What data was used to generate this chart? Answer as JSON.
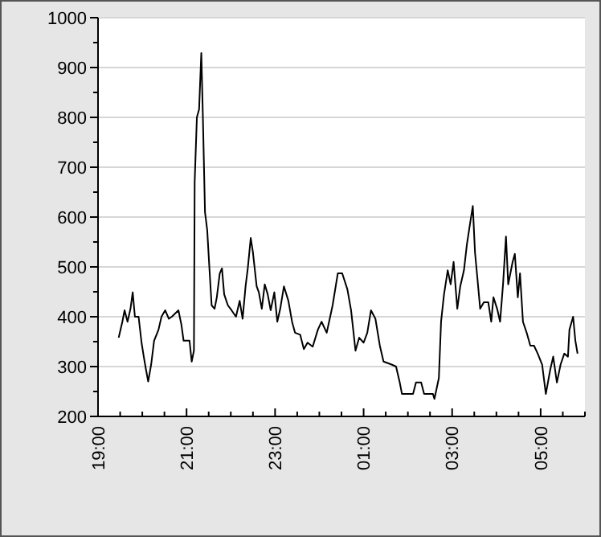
{
  "chart_data": {
    "type": "line",
    "grid": "y",
    "marker": "none",
    "line_style": "solid",
    "xlim": [
      "2000-01-01T19:00",
      "2000-01-02T06:00"
    ],
    "ylim": [
      200,
      1000
    ],
    "xticks": [
      {
        "value": "2000-01-01T19:00",
        "label": "19:00"
      },
      {
        "value": "2000-01-01T19:30",
        "label": null
      },
      {
        "value": "2000-01-01T20:00",
        "label": null
      },
      {
        "value": "2000-01-01T20:30",
        "label": null
      },
      {
        "value": "2000-01-01T21:00",
        "label": "21:00"
      },
      {
        "value": "2000-01-01T21:30",
        "label": null
      },
      {
        "value": "2000-01-01T22:00",
        "label": null
      },
      {
        "value": "2000-01-01T22:30",
        "label": null
      },
      {
        "value": "2000-01-01T23:00",
        "label": "23:00"
      },
      {
        "value": "2000-01-01T23:30",
        "label": null
      },
      {
        "value": "2000-01-02T00:00",
        "label": null
      },
      {
        "value": "2000-01-02T00:30",
        "label": null
      },
      {
        "value": "2000-01-02T01:00",
        "label": "01:00"
      },
      {
        "value": "2000-01-02T01:30",
        "label": null
      },
      {
        "value": "2000-01-02T02:00",
        "label": null
      },
      {
        "value": "2000-01-02T02:30",
        "label": null
      },
      {
        "value": "2000-01-02T03:00",
        "label": "03:00"
      },
      {
        "value": "2000-01-02T03:30",
        "label": null
      },
      {
        "value": "2000-01-02T04:00",
        "label": null
      },
      {
        "value": "2000-01-02T04:30",
        "label": null
      },
      {
        "value": "2000-01-02T05:00",
        "label": "05:00"
      },
      {
        "value": "2000-01-02T05:30",
        "label": null
      },
      {
        "value": "2000-01-02T06:00",
        "label": null
      }
    ],
    "yticks": [
      200,
      {
        "value": 250,
        "label": null
      },
      300,
      {
        "value": 350,
        "label": null
      },
      400,
      {
        "value": 450,
        "label": null
      },
      500,
      {
        "value": 550,
        "label": null
      },
      600,
      {
        "value": 650,
        "label": null
      },
      700,
      {
        "value": 750,
        "label": null
      },
      800,
      {
        "value": 850,
        "label": null
      },
      900,
      {
        "value": 950,
        "label": null
      },
      1000
    ],
    "series": [
      {
        "color": "#000000",
        "x": [
          "2000-01-01T19:28",
          "2000-01-01T19:33",
          "2000-01-01T19:36",
          "2000-01-01T19:40",
          "2000-01-01T19:44",
          "2000-01-01T19:47",
          "2000-01-01T19:50",
          "2000-01-01T19:55",
          "2000-01-01T19:59",
          "2000-01-01T20:02",
          "2000-01-01T20:05",
          "2000-01-01T20:08",
          "2000-01-01T20:12",
          "2000-01-01T20:16",
          "2000-01-01T20:22",
          "2000-01-01T20:26",
          "2000-01-01T20:31",
          "2000-01-01T20:36",
          "2000-01-01T20:40",
          "2000-01-01T20:49",
          "2000-01-01T20:53",
          "2000-01-01T20:56",
          "2000-01-01T21:04",
          "2000-01-01T21:07",
          "2000-01-01T21:10",
          "2000-01-01T21:11",
          "2000-01-01T21:14",
          "2000-01-01T21:17",
          "2000-01-01T21:20",
          "2000-01-01T21:22",
          "2000-01-01T21:25",
          "2000-01-01T21:28",
          "2000-01-01T21:31",
          "2000-01-01T21:34",
          "2000-01-01T21:38",
          "2000-01-01T21:41",
          "2000-01-01T21:45",
          "2000-01-01T21:48",
          "2000-01-01T21:51",
          "2000-01-01T21:56",
          "2000-01-01T22:01",
          "2000-01-01T22:07",
          "2000-01-01T22:12",
          "2000-01-01T22:16",
          "2000-01-01T22:20",
          "2000-01-01T22:23",
          "2000-01-01T22:27",
          "2000-01-01T22:30",
          "2000-01-01T22:35",
          "2000-01-01T22:38",
          "2000-01-01T22:42",
          "2000-01-01T22:46",
          "2000-01-01T22:50",
          "2000-01-01T22:54",
          "2000-01-01T22:59",
          "2000-01-01T23:03",
          "2000-01-01T23:07",
          "2000-01-01T23:12",
          "2000-01-01T23:18",
          "2000-01-01T23:23",
          "2000-01-01T23:27",
          "2000-01-01T23:34",
          "2000-01-01T23:39",
          "2000-01-01T23:44",
          "2000-01-01T23:51",
          "2000-01-01T23:58",
          "2000-01-02T00:03",
          "2000-01-02T00:10",
          "2000-01-02T00:18",
          "2000-01-02T00:25",
          "2000-01-02T00:31",
          "2000-01-02T00:38",
          "2000-01-02T00:43",
          "2000-01-02T00:49",
          "2000-01-02T00:54",
          "2000-01-02T01:00",
          "2000-01-02T01:05",
          "2000-01-02T01:10",
          "2000-01-02T01:16",
          "2000-01-02T01:22",
          "2000-01-02T01:27",
          "2000-01-02T01:38",
          "2000-01-02T01:44",
          "2000-01-02T01:49",
          "2000-01-02T01:52",
          "2000-01-02T02:07",
          "2000-01-02T02:11",
          "2000-01-02T02:18",
          "2000-01-02T02:22",
          "2000-01-02T02:34",
          "2000-01-02T02:36",
          "2000-01-02T02:42",
          "2000-01-02T02:45",
          "2000-01-02T02:49",
          "2000-01-02T02:54",
          "2000-01-02T02:58",
          "2000-01-02T03:02",
          "2000-01-02T03:07",
          "2000-01-02T03:11",
          "2000-01-02T03:16",
          "2000-01-02T03:20",
          "2000-01-02T03:24",
          "2000-01-02T03:28",
          "2000-01-02T03:31",
          "2000-01-02T03:34",
          "2000-01-02T03:38",
          "2000-01-02T03:43",
          "2000-01-02T03:49",
          "2000-01-02T03:53",
          "2000-01-02T03:56",
          "2000-01-02T04:01",
          "2000-01-02T04:05",
          "2000-01-02T04:09",
          "2000-01-02T04:13",
          "2000-01-02T04:16",
          "2000-01-02T04:22",
          "2000-01-02T04:25",
          "2000-01-02T04:29",
          "2000-01-02T04:32",
          "2000-01-02T04:36",
          "2000-01-02T04:41",
          "2000-01-02T04:46",
          "2000-01-02T04:51",
          "2000-01-02T04:56",
          "2000-01-02T05:02",
          "2000-01-02T05:07",
          "2000-01-02T05:13",
          "2000-01-02T05:17",
          "2000-01-02T05:22",
          "2000-01-02T05:27",
          "2000-01-02T05:32",
          "2000-01-02T05:37",
          "2000-01-02T05:39",
          "2000-01-02T05:44",
          "2000-01-02T05:47",
          "2000-01-02T05:50"
        ],
        "values": [
          358,
          390,
          413,
          390,
          416,
          449,
          400,
          400,
          348,
          320,
          294,
          270,
          304,
          352,
          374,
          400,
          413,
          396,
          400,
          413,
          384,
          352,
          352,
          310,
          332,
          670,
          800,
          816,
          929,
          810,
          610,
          574,
          497,
          423,
          416,
          439,
          487,
          497,
          445,
          423,
          413,
          400,
          432,
          396,
          461,
          497,
          558,
          529,
          461,
          449,
          416,
          465,
          445,
          413,
          449,
          390,
          416,
          461,
          432,
          390,
          368,
          364,
          335,
          348,
          340,
          374,
          390,
          368,
          423,
          487,
          487,
          455,
          413,
          332,
          358,
          348,
          368,
          413,
          396,
          342,
          310,
          304,
          300,
          268,
          245,
          245,
          268,
          268,
          245,
          245,
          235,
          277,
          390,
          445,
          493,
          465,
          510,
          416,
          461,
          493,
          545,
          584,
          622,
          529,
          481,
          416,
          429,
          429,
          390,
          439,
          416,
          390,
          465,
          561,
          465,
          510,
          526,
          439,
          487,
          390,
          368,
          342,
          342,
          326,
          304,
          245,
          294,
          320,
          268,
          304,
          326,
          320,
          374,
          400,
          352,
          326
        ]
      }
    ]
  }
}
